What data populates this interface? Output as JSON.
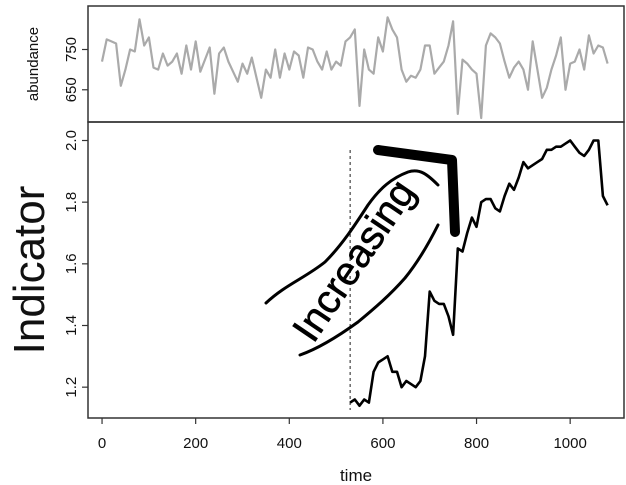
{
  "colors": {
    "top_series": "#aaaaaa",
    "bottom_series": "#000000",
    "threshold_line": "#444444",
    "frame": "#333333",
    "annotation": "#000000"
  },
  "chart_data": [
    {
      "type": "line",
      "panel": "top",
      "title": "",
      "xlabel": "",
      "ylabel": "abundance",
      "xlim": [
        -30,
        1115
      ],
      "ylim": [
        570,
        858
      ],
      "y_ticks": [
        650,
        750
      ],
      "y_tick_labels": [
        "650",
        "750"
      ],
      "grid": false,
      "series": [
        {
          "x": [
            0,
            10,
            20,
            30,
            40,
            50,
            60,
            70,
            80,
            90,
            100,
            110,
            120,
            130,
            140,
            150,
            160,
            170,
            180,
            190,
            200,
            210,
            220,
            230,
            240,
            250,
            260,
            270,
            280,
            290,
            300,
            310,
            320,
            330,
            340,
            350,
            360,
            370,
            380,
            390,
            400,
            410,
            420,
            430,
            440,
            450,
            460,
            470,
            480,
            490,
            500,
            510,
            520,
            530,
            540,
            550,
            560,
            570,
            580,
            590,
            600,
            610,
            620,
            630,
            640,
            650,
            660,
            670,
            680,
            690,
            700,
            710,
            720,
            730,
            740,
            750,
            760,
            770,
            780,
            790,
            800,
            810,
            820,
            830,
            840,
            850,
            860,
            870,
            880,
            890,
            900,
            910,
            920,
            930,
            940,
            950,
            960,
            970,
            980,
            990,
            1000,
            1010,
            1020,
            1030,
            1040,
            1050,
            1060,
            1070,
            1080
          ],
          "values": [
            720,
            775,
            770,
            765,
            660,
            700,
            750,
            745,
            825,
            760,
            780,
            705,
            700,
            740,
            710,
            720,
            740,
            690,
            760,
            700,
            770,
            695,
            725,
            755,
            640,
            740,
            755,
            720,
            695,
            670,
            715,
            690,
            730,
            680,
            630,
            700,
            680,
            750,
            680,
            740,
            700,
            745,
            735,
            680,
            755,
            750,
            720,
            700,
            745,
            700,
            720,
            710,
            770,
            780,
            800,
            610,
            750,
            700,
            690,
            780,
            745,
            830,
            800,
            780,
            700,
            670,
            685,
            680,
            700,
            760,
            760,
            690,
            705,
            720,
            760,
            820,
            590,
            725,
            715,
            700,
            690,
            580,
            760,
            790,
            780,
            765,
            720,
            680,
            705,
            720,
            700,
            650,
            770,
            700,
            630,
            655,
            700,
            735,
            780,
            650,
            715,
            720,
            750,
            700,
            785,
            740,
            760,
            755,
            715
          ]
        }
      ]
    },
    {
      "type": "line",
      "panel": "bottom",
      "title": "",
      "xlabel": "time",
      "ylabel": "Indicator",
      "xlim": [
        -30,
        1115
      ],
      "ylim": [
        1.1,
        2.06
      ],
      "x_ticks": [
        0,
        200,
        400,
        600,
        800,
        1000
      ],
      "x_tick_labels": [
        "0",
        "200",
        "400",
        "600",
        "800",
        "1000"
      ],
      "y_ticks": [
        1.2,
        1.4,
        1.6,
        1.8,
        2.0
      ],
      "y_tick_labels": [
        "1.2",
        "1.4",
        "1.6",
        "1.8",
        "2.0"
      ],
      "top_axis_label": "2.0",
      "grid": false,
      "threshold_x": 530,
      "annotation": "Increasing",
      "series": [
        {
          "x": [
            530,
            540,
            550,
            560,
            570,
            580,
            590,
            600,
            610,
            620,
            630,
            640,
            650,
            660,
            670,
            680,
            690,
            700,
            710,
            720,
            730,
            740,
            750,
            760,
            770,
            780,
            790,
            800,
            810,
            820,
            830,
            840,
            850,
            860,
            870,
            880,
            890,
            900,
            910,
            920,
            930,
            940,
            950,
            960,
            970,
            980,
            990,
            1000,
            1010,
            1020,
            1030,
            1040,
            1050,
            1060,
            1070,
            1080
          ],
          "values": [
            1.15,
            1.16,
            1.14,
            1.16,
            1.15,
            1.25,
            1.28,
            1.29,
            1.3,
            1.25,
            1.25,
            1.2,
            1.22,
            1.21,
            1.2,
            1.22,
            1.3,
            1.51,
            1.48,
            1.47,
            1.47,
            1.43,
            1.37,
            1.65,
            1.64,
            1.7,
            1.75,
            1.72,
            1.8,
            1.81,
            1.81,
            1.78,
            1.77,
            1.82,
            1.86,
            1.84,
            1.88,
            1.93,
            1.91,
            1.92,
            1.93,
            1.94,
            1.97,
            1.97,
            1.98,
            1.98,
            1.99,
            2.0,
            1.98,
            1.96,
            1.95,
            1.97,
            2.0,
            2.0,
            1.82,
            1.79
          ]
        }
      ]
    }
  ]
}
